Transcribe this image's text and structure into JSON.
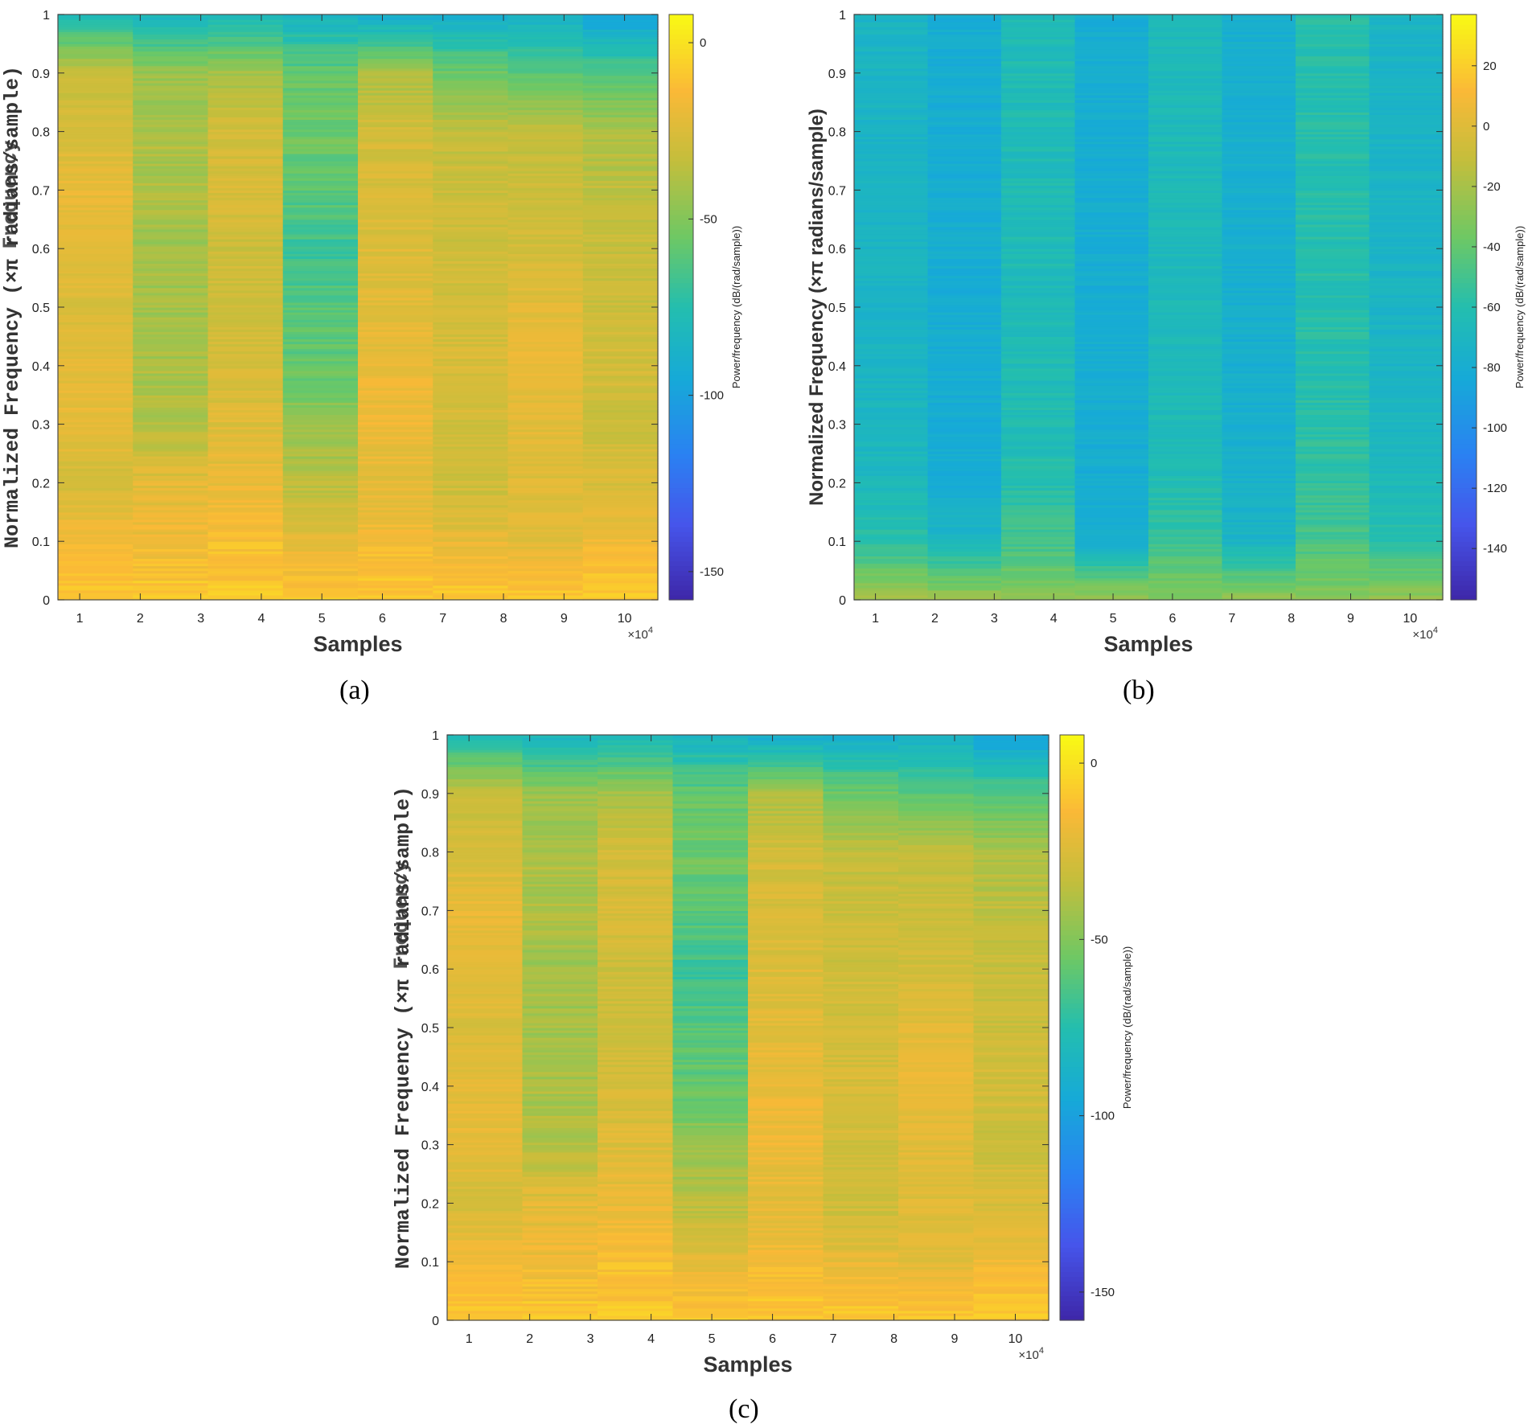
{
  "chart_data": [
    {
      "type": "heatmap",
      "panel": "(a)",
      "title": "",
      "xlabel": "Samples",
      "ylabel": "Normalized Frequency (×π radians/sample)",
      "ylabel_overprint": "Frequency",
      "x_exponent_label": "×10",
      "x_exponent_power": "4",
      "xticks": [
        "1",
        "2",
        "3",
        "4",
        "5",
        "6",
        "7",
        "8",
        "9",
        "10"
      ],
      "yticks": [
        "0",
        "0.1",
        "0.2",
        "0.3",
        "0.4",
        "0.5",
        "0.6",
        "0.7",
        "0.8",
        "0.9",
        "1"
      ],
      "xlim": [
        0.64,
        10.55
      ],
      "ylim": [
        0,
        1
      ],
      "colorbar_label": "Power/frequency (dB/(rad/sample))",
      "colorbar_ticks": [
        "0",
        "-50",
        "-100",
        "-150"
      ],
      "colorbar_tick_values": [
        0,
        -50,
        -100,
        -150
      ],
      "colorbar_range": [
        -158,
        8
      ],
      "columns": 8,
      "power_profile_db": [
        [
          -8,
          -8,
          -8,
          -8,
          -8,
          -8,
          -8,
          -8
        ],
        [
          -15,
          -18,
          -13,
          -22,
          -16,
          -20,
          -22,
          -17
        ],
        [
          -28,
          -22,
          -20,
          -35,
          -22,
          -30,
          -24,
          -26
        ],
        [
          -20,
          -38,
          -24,
          -45,
          -18,
          -28,
          -22,
          -30
        ],
        [
          -22,
          -40,
          -28,
          -58,
          -20,
          -26,
          -20,
          -28
        ],
        [
          -25,
          -42,
          -30,
          -62,
          -22,
          -28,
          -22,
          -30
        ],
        [
          -22,
          -42,
          -30,
          -68,
          -24,
          -30,
          -28,
          -32
        ],
        [
          -20,
          -40,
          -26,
          -60,
          -26,
          -30,
          -30,
          -34
        ],
        [
          -26,
          -38,
          -28,
          -55,
          -28,
          -33,
          -34,
          -40
        ],
        [
          -32,
          -45,
          -42,
          -58,
          -40,
          -55,
          -60,
          -62
        ],
        [
          -80,
          -85,
          -82,
          -85,
          -92,
          -90,
          -88,
          -100
        ]
      ],
      "noise_amplitude_db": [
        4,
        6,
        5,
        6,
        5,
        5,
        4,
        5
      ]
    },
    {
      "type": "heatmap",
      "panel": "(b)",
      "title": "",
      "xlabel": "Samples",
      "ylabel": "Normalized Frequency (×π radians/sample)",
      "x_exponent_label": "×10",
      "x_exponent_power": "4",
      "xticks": [
        "1",
        "2",
        "3",
        "4",
        "5",
        "6",
        "7",
        "8",
        "9",
        "10"
      ],
      "yticks": [
        "0",
        "0.1",
        "0.2",
        "0.3",
        "0.4",
        "0.5",
        "0.6",
        "0.7",
        "0.8",
        "0.9",
        "1"
      ],
      "xlim": [
        0.64,
        10.55
      ],
      "ylim": [
        0,
        1
      ],
      "colorbar_label": "Power/frequency (dB/(rad/sample))",
      "colorbar_ticks": [
        "20",
        "0",
        "-20",
        "-40",
        "-60",
        "-80",
        "-100",
        "-120",
        "-140"
      ],
      "colorbar_tick_values": [
        20,
        0,
        -20,
        -40,
        -60,
        -80,
        -100,
        -120,
        -140
      ],
      "colorbar_range": [
        -157,
        37
      ],
      "columns": 8,
      "power_profile_db": [
        [
          -20,
          -22,
          -28,
          -22,
          -28,
          -24,
          -30,
          -25
        ],
        [
          -58,
          -70,
          -50,
          -78,
          -52,
          -72,
          -48,
          -58
        ],
        [
          -68,
          -80,
          -60,
          -80,
          -62,
          -76,
          -56,
          -66
        ],
        [
          -70,
          -80,
          -62,
          -80,
          -64,
          -78,
          -58,
          -70
        ],
        [
          -72,
          -80,
          -64,
          -80,
          -66,
          -78,
          -60,
          -72
        ],
        [
          -72,
          -80,
          -64,
          -80,
          -66,
          -78,
          -60,
          -72
        ],
        [
          -72,
          -80,
          -64,
          -80,
          -66,
          -78,
          -60,
          -72
        ],
        [
          -72,
          -80,
          -64,
          -80,
          -66,
          -78,
          -60,
          -72
        ],
        [
          -72,
          -80,
          -64,
          -80,
          -66,
          -78,
          -60,
          -72
        ],
        [
          -72,
          -80,
          -64,
          -80,
          -66,
          -78,
          -60,
          -72
        ],
        [
          -72,
          -80,
          -64,
          -80,
          -66,
          -78,
          -60,
          -72
        ]
      ],
      "noise_amplitude_db": [
        5,
        5,
        6,
        5,
        5,
        5,
        6,
        5
      ]
    },
    {
      "type": "heatmap",
      "panel": "(c)",
      "title": "",
      "xlabel": "Samples",
      "ylabel": "Normalized Frequency (×π radians/sample)",
      "ylabel_overprint": "Frequency",
      "x_exponent_label": "×10",
      "x_exponent_power": "4",
      "xticks": [
        "1",
        "2",
        "3",
        "4",
        "5",
        "6",
        "7",
        "8",
        "9",
        "10"
      ],
      "yticks": [
        "0",
        "0.1",
        "0.2",
        "0.3",
        "0.4",
        "0.5",
        "0.6",
        "0.7",
        "0.8",
        "0.9",
        "1"
      ],
      "xlim": [
        0.64,
        10.55
      ],
      "ylim": [
        0,
        1
      ],
      "colorbar_label": "Power/frequency (dB/(rad/sample))",
      "colorbar_ticks": [
        "0",
        "-50",
        "-100",
        "-150"
      ],
      "colorbar_tick_values": [
        0,
        -50,
        -100,
        -150
      ],
      "colorbar_range": [
        -158,
        8
      ],
      "columns": 8,
      "power_profile_db": [
        [
          -8,
          -8,
          -8,
          -8,
          -8,
          -8,
          -8,
          -8
        ],
        [
          -15,
          -18,
          -13,
          -22,
          -16,
          -20,
          -22,
          -17
        ],
        [
          -28,
          -22,
          -20,
          -35,
          -22,
          -30,
          -24,
          -26
        ],
        [
          -20,
          -38,
          -24,
          -45,
          -18,
          -28,
          -22,
          -30
        ],
        [
          -22,
          -40,
          -28,
          -58,
          -20,
          -26,
          -20,
          -28
        ],
        [
          -25,
          -42,
          -30,
          -62,
          -22,
          -28,
          -22,
          -30
        ],
        [
          -22,
          -42,
          -30,
          -68,
          -24,
          -30,
          -28,
          -32
        ],
        [
          -20,
          -40,
          -26,
          -60,
          -26,
          -30,
          -30,
          -34
        ],
        [
          -26,
          -38,
          -28,
          -55,
          -28,
          -33,
          -34,
          -40
        ],
        [
          -32,
          -45,
          -42,
          -58,
          -40,
          -55,
          -60,
          -62
        ],
        [
          -80,
          -85,
          -82,
          -85,
          -92,
          -90,
          -88,
          -100
        ]
      ],
      "noise_amplitude_db": [
        4,
        6,
        5,
        6,
        5,
        5,
        4,
        5
      ]
    }
  ],
  "captions": {
    "a": "(a)",
    "b": "(b)",
    "c": "(c)"
  }
}
